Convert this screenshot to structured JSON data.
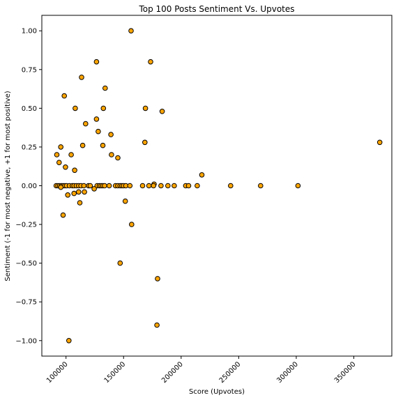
{
  "chart_data": {
    "type": "scatter",
    "title": "Top 100 Posts Sentiment Vs. Upvotes",
    "xlabel": "Score (Upvotes)",
    "ylabel": "Sentiment (-1 for most negative, +1 for most positive)",
    "xlim": [
      79000,
      383000
    ],
    "ylim": [
      -1.1,
      1.1
    ],
    "xticks": [
      100000,
      150000,
      200000,
      250000,
      300000,
      350000
    ],
    "xtick_labels": [
      "100000",
      "150000",
      "200000",
      "250000",
      "300000",
      "350000"
    ],
    "yticks": [
      1.0,
      0.75,
      0.5,
      0.25,
      0.0,
      -0.25,
      -0.5,
      -0.75,
      -1.0
    ],
    "ytick_labels": [
      "1.00",
      "0.75",
      "0.50",
      "0.25",
      "0.00",
      "−0.25",
      "−0.50",
      "−0.75",
      "−1.00"
    ],
    "grid": false,
    "marker_color": "#ffa500",
    "marker_edge": "#000000",
    "points": [
      [
        156500,
        1.0
      ],
      [
        126500,
        0.8
      ],
      [
        173500,
        0.8
      ],
      [
        113500,
        0.7
      ],
      [
        134000,
        0.63
      ],
      [
        98500,
        0.58
      ],
      [
        108000,
        0.5
      ],
      [
        132500,
        0.5
      ],
      [
        169000,
        0.5
      ],
      [
        183500,
        0.48
      ],
      [
        126500,
        0.43
      ],
      [
        117000,
        0.4
      ],
      [
        128000,
        0.35
      ],
      [
        139000,
        0.33
      ],
      [
        168500,
        0.28
      ],
      [
        372500,
        0.28
      ],
      [
        114500,
        0.26
      ],
      [
        132000,
        0.26
      ],
      [
        95500,
        0.25
      ],
      [
        92000,
        0.2
      ],
      [
        104500,
        0.2
      ],
      [
        139500,
        0.2
      ],
      [
        145000,
        0.18
      ],
      [
        94000,
        0.15
      ],
      [
        99500,
        0.12
      ],
      [
        107500,
        0.1
      ],
      [
        218000,
        0.07
      ],
      [
        176500,
        0.01
      ],
      [
        91500,
        0.0
      ],
      [
        93000,
        0.0
      ],
      [
        94500,
        0.0
      ],
      [
        96000,
        0.0
      ],
      [
        97500,
        0.0
      ],
      [
        99000,
        0.0
      ],
      [
        100500,
        0.0
      ],
      [
        103000,
        0.0
      ],
      [
        105500,
        0.0
      ],
      [
        107000,
        0.0
      ],
      [
        109000,
        0.0
      ],
      [
        111000,
        0.0
      ],
      [
        113000,
        0.0
      ],
      [
        115500,
        0.0
      ],
      [
        119500,
        0.0
      ],
      [
        121000,
        0.0
      ],
      [
        127000,
        0.0
      ],
      [
        129000,
        0.0
      ],
      [
        130500,
        0.0
      ],
      [
        132000,
        0.0
      ],
      [
        133500,
        0.0
      ],
      [
        137500,
        0.0
      ],
      [
        143000,
        0.0
      ],
      [
        145000,
        0.0
      ],
      [
        147000,
        0.0
      ],
      [
        148500,
        0.0
      ],
      [
        150000,
        0.0
      ],
      [
        152000,
        0.0
      ],
      [
        155500,
        0.0
      ],
      [
        166500,
        0.0
      ],
      [
        172000,
        0.0
      ],
      [
        176000,
        0.0
      ],
      [
        182500,
        0.0
      ],
      [
        188500,
        0.0
      ],
      [
        194000,
        0.0
      ],
      [
        204000,
        0.0
      ],
      [
        206500,
        0.0
      ],
      [
        214000,
        0.0
      ],
      [
        243000,
        0.0
      ],
      [
        269000,
        0.0
      ],
      [
        301500,
        0.0
      ],
      [
        95500,
        -0.01
      ],
      [
        124500,
        -0.02
      ],
      [
        111000,
        -0.04
      ],
      [
        116000,
        -0.04
      ],
      [
        107000,
        -0.05
      ],
      [
        101500,
        -0.06
      ],
      [
        151500,
        -0.1
      ],
      [
        112000,
        -0.11
      ],
      [
        97500,
        -0.19
      ],
      [
        157000,
        -0.25
      ],
      [
        147000,
        -0.5
      ],
      [
        179500,
        -0.6
      ],
      [
        179000,
        -0.9
      ],
      [
        102500,
        -1.0
      ]
    ]
  }
}
